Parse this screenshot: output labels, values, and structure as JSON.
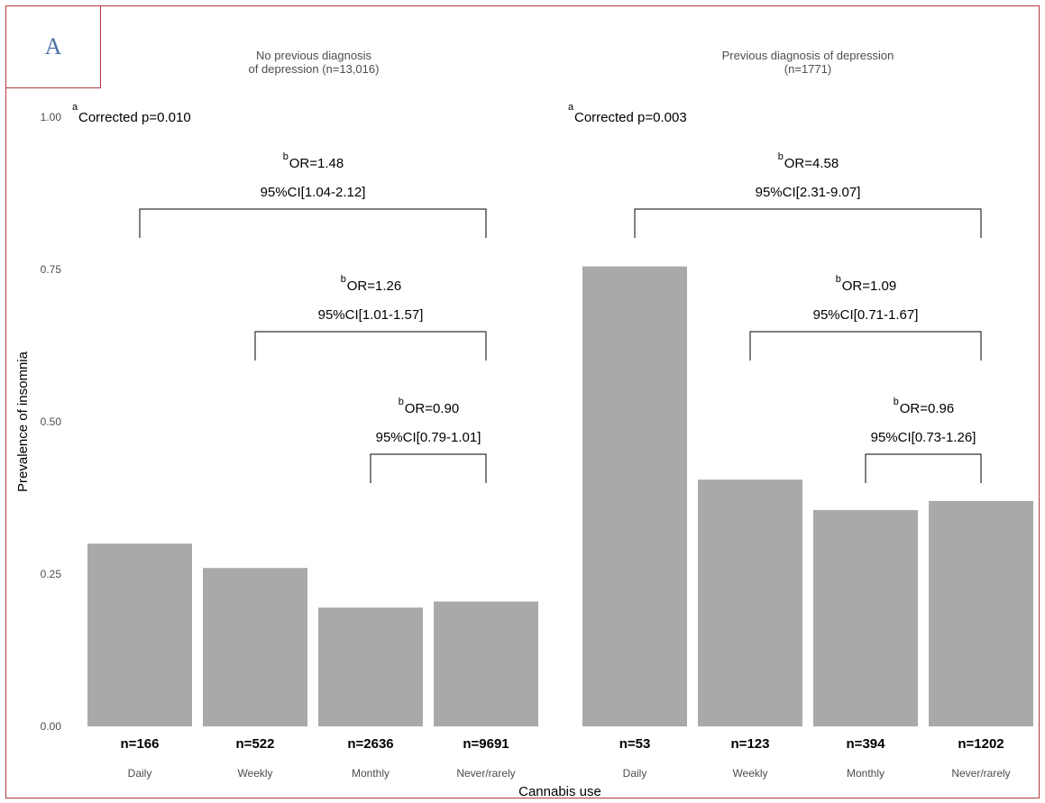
{
  "panel_label": "A",
  "chart_data": {
    "type": "bar",
    "ylabel": "Prevalence of insomnia",
    "xlabel": "Cannabis use",
    "ylim": [
      0,
      1
    ],
    "yticks": [
      "0.00",
      "0.25",
      "0.50",
      "0.75",
      "1.00"
    ],
    "grid": false,
    "colors": {
      "bar": "#a9a9a9"
    },
    "facets": [
      {
        "title_line1": "No previous diagnosis",
        "title_line2": "of depression (n=13,016)",
        "categories": [
          "Daily",
          "Weekly",
          "Monthly",
          "Never/rarely"
        ],
        "values": [
          0.3,
          0.26,
          0.195,
          0.205
        ],
        "counts": [
          "n=166",
          "n=522",
          "n=2636",
          "n=9691"
        ],
        "corrected_sup": "a",
        "corrected_p": "Corrected p=0.010",
        "comparisons": [
          {
            "from": 0,
            "to": 3,
            "sup": "b",
            "or": "OR=1.48",
            "ci": "95%CI[1.04-2.12]"
          },
          {
            "from": 1,
            "to": 3,
            "sup": "b",
            "or": "OR=1.26",
            "ci": "95%CI[1.01-1.57]"
          },
          {
            "from": 2,
            "to": 3,
            "sup": "b",
            "or": "OR=0.90",
            "ci": "95%CI[0.79-1.01]"
          }
        ]
      },
      {
        "title_line1": "Previous diagnosis of depression",
        "title_line2": "(n=1771)",
        "categories": [
          "Daily",
          "Weekly",
          "Monthly",
          "Never/rarely"
        ],
        "values": [
          0.755,
          0.405,
          0.355,
          0.37
        ],
        "counts": [
          "n=53",
          "n=123",
          "n=394",
          "n=1202"
        ],
        "corrected_sup": "a",
        "corrected_p": "Corrected p=0.003",
        "comparisons": [
          {
            "from": 0,
            "to": 3,
            "sup": "b",
            "or": "OR=4.58",
            "ci": "95%CI[2.31-9.07]"
          },
          {
            "from": 1,
            "to": 3,
            "sup": "b",
            "or": "OR=1.09",
            "ci": "95%CI[0.71-1.67]"
          },
          {
            "from": 2,
            "to": 3,
            "sup": "b",
            "or": "OR=0.96",
            "ci": "95%CI[0.73-1.26]"
          }
        ]
      }
    ]
  }
}
